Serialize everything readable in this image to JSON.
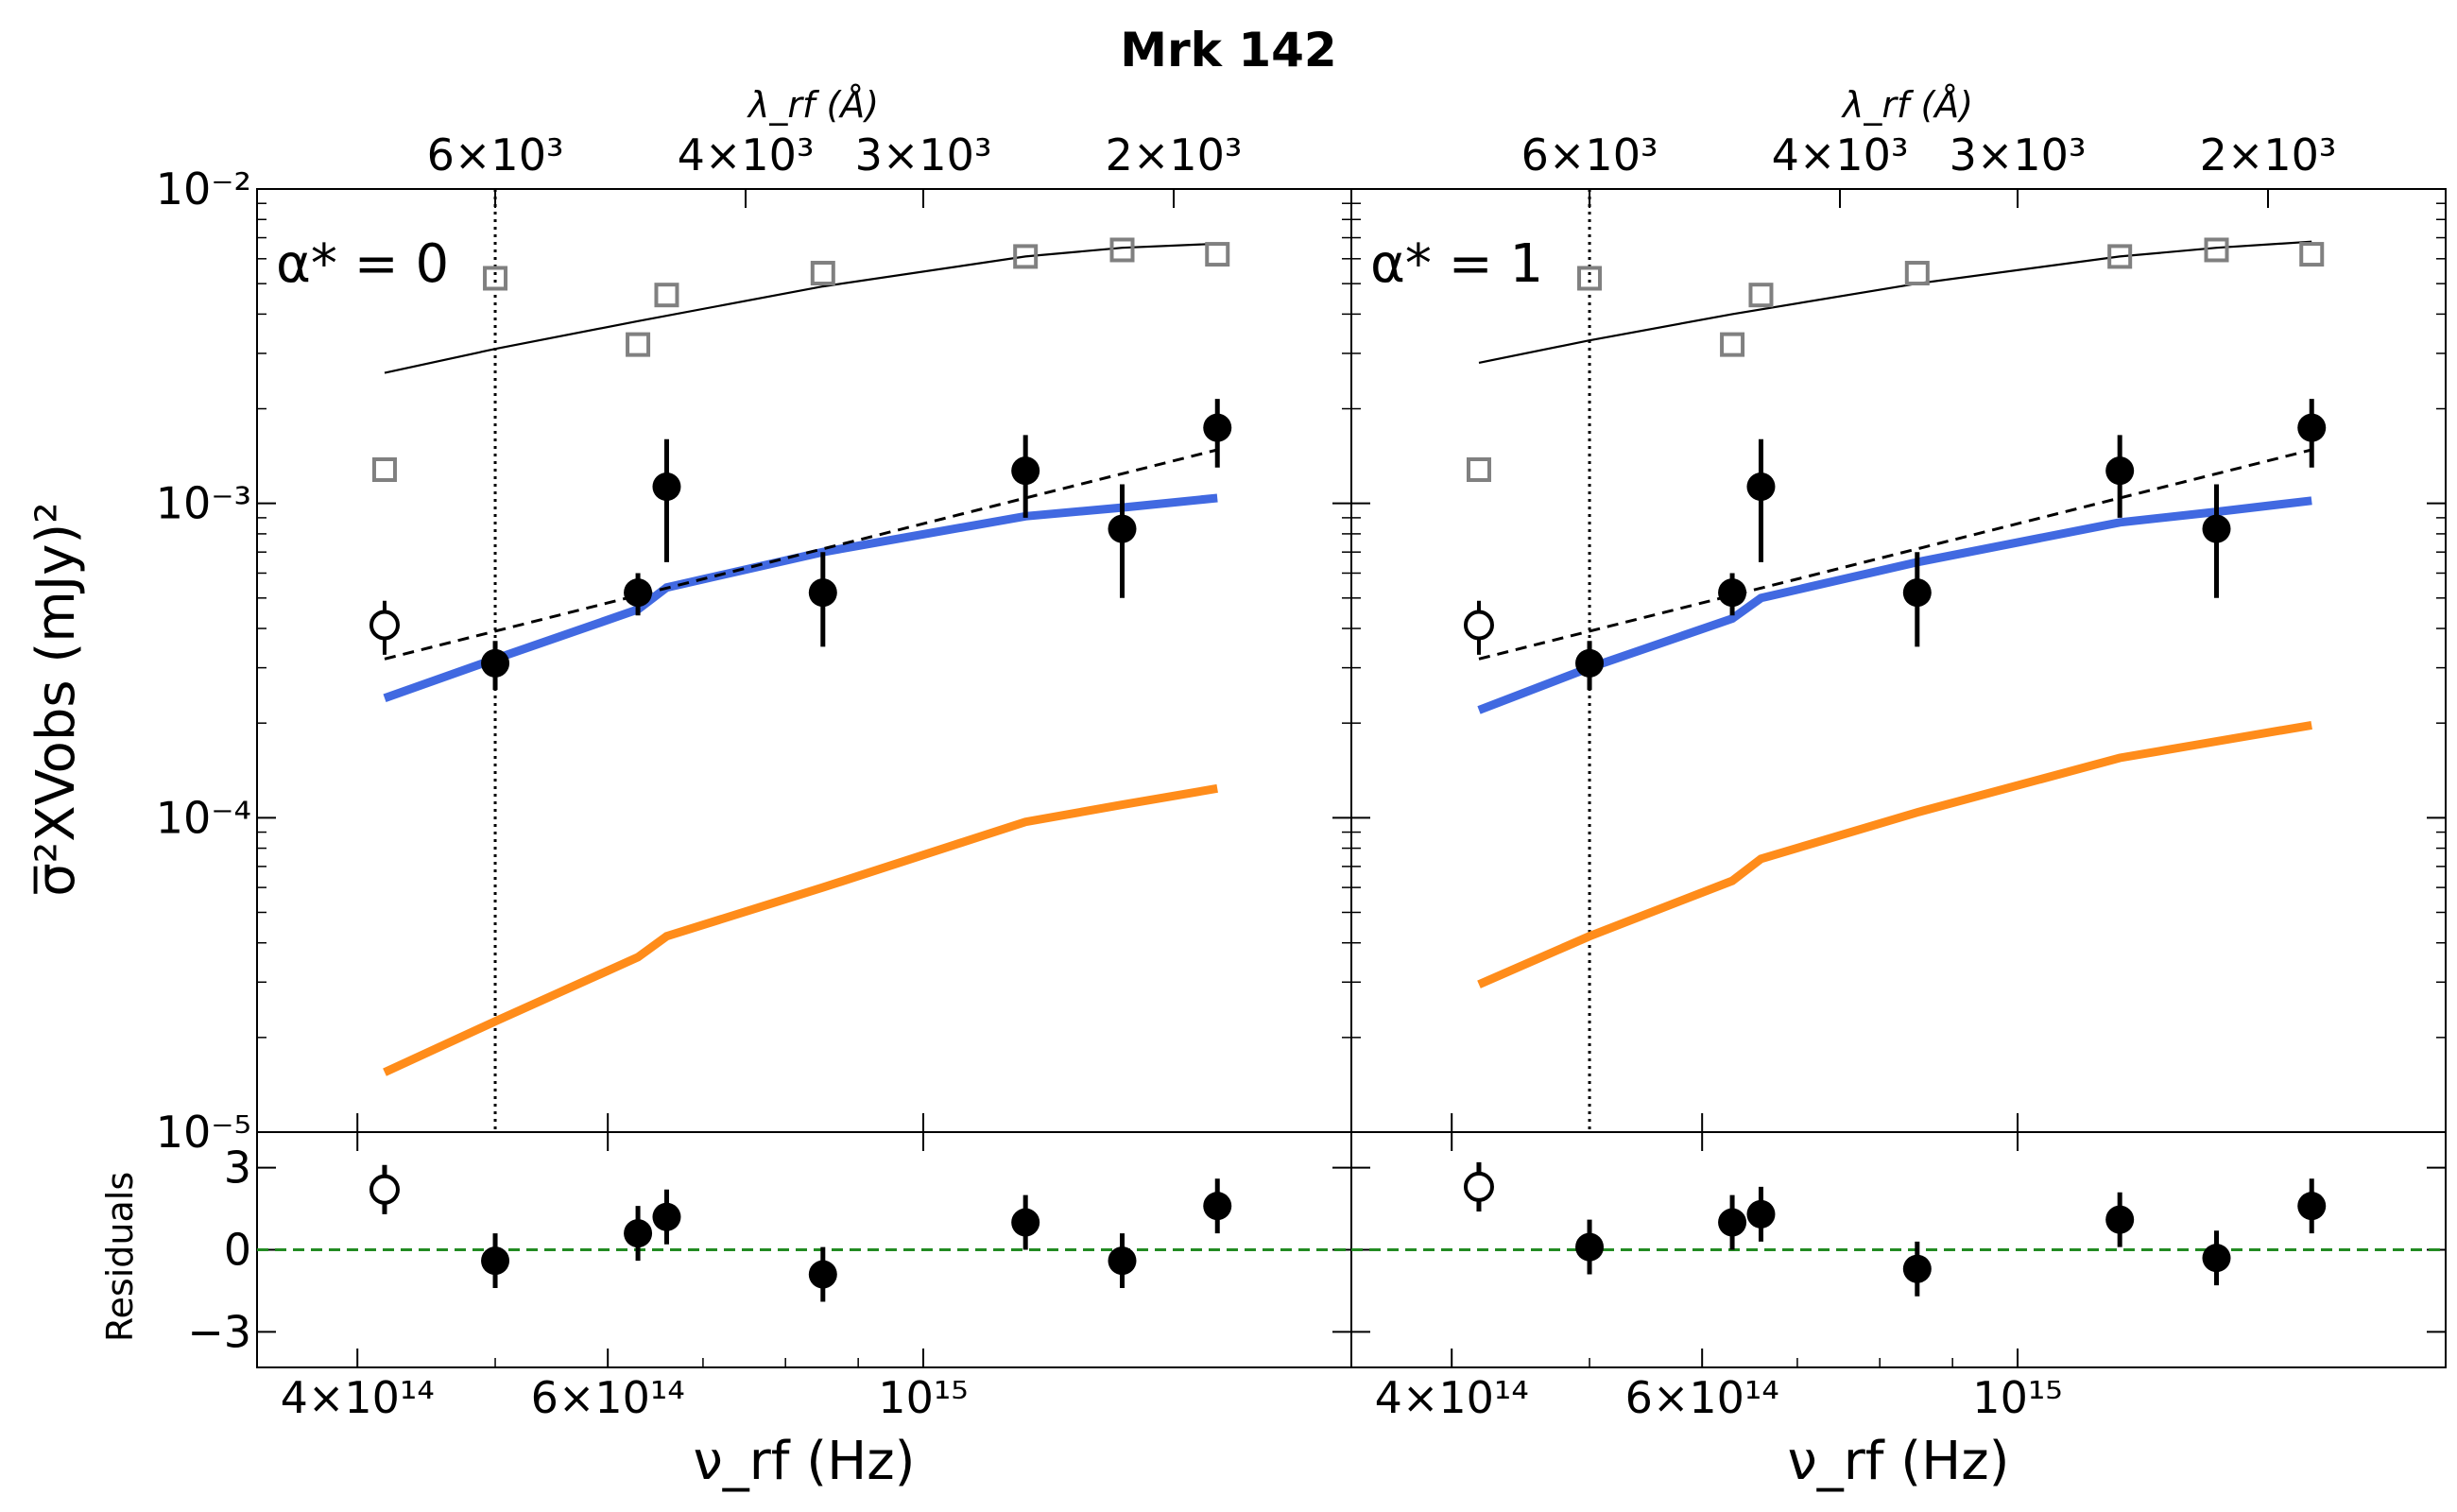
{
  "chart_data": {
    "type": "scatter",
    "title": "Mrk 142",
    "ylabel_main": "σ̅²XVobs (mJy)²",
    "ylabel_resid": "Residuals",
    "xlabel": "ν_rf (Hz)",
    "xlabel_top": "λ_rf (Å)",
    "x_scale": "log",
    "y_scale_main": "log",
    "xlim": [
      340000000000000,
      2000000000000000
    ],
    "ylim_main": [
      1e-05,
      0.01
    ],
    "ylim_resid": [
      -4.3,
      4.3
    ],
    "xticks": [
      {
        "value": 400000000000000,
        "label": "4×10¹⁴"
      },
      {
        "value": 600000000000000,
        "label": "6×10¹⁴"
      },
      {
        "value": 1000000000000000,
        "label": "10¹⁵"
      }
    ],
    "xticks_top": [
      {
        "nu": 500000000000000,
        "label": "6×10³"
      },
      {
        "nu": 750000000000000,
        "label": "4×10³"
      },
      {
        "nu": 1000000000000000,
        "label": "3×10³"
      },
      {
        "nu": 1500000000000000,
        "label": "2×10³"
      }
    ],
    "yticks_main": [
      {
        "value": 0.01,
        "label": "10⁻²"
      },
      {
        "value": 0.001,
        "label": "10⁻³"
      },
      {
        "value": 0.0001,
        "label": "10⁻⁴"
      },
      {
        "value": 1e-05,
        "label": "10⁻⁵"
      }
    ],
    "yticks_resid": [
      {
        "value": 3,
        "label": "3"
      },
      {
        "value": 0,
        "label": "0"
      },
      {
        "value": -3,
        "label": "−3"
      }
    ],
    "vline_nu": 500000000000000,
    "panels": [
      {
        "label": "α* = 0",
        "gray_squares": [
          {
            "x": 418000000000000,
            "y": 0.00128
          },
          {
            "x": 500000000000000,
            "y": 0.0052
          },
          {
            "x": 630000000000000,
            "y": 0.0032
          },
          {
            "x": 660000000000000,
            "y": 0.0046
          },
          {
            "x": 850000000000000,
            "y": 0.0054
          },
          {
            "x": 1180000000000000,
            "y": 0.0061
          },
          {
            "x": 1380000000000000,
            "y": 0.0064
          },
          {
            "x": 1610000000000000,
            "y": 0.0062
          }
        ],
        "thin_line": [
          {
            "x": 418000000000000,
            "y": 0.0026
          },
          {
            "x": 500000000000000,
            "y": 0.0031
          },
          {
            "x": 630000000000000,
            "y": 0.0038
          },
          {
            "x": 850000000000000,
            "y": 0.0049
          },
          {
            "x": 1180000000000000,
            "y": 0.0061
          },
          {
            "x": 1380000000000000,
            "y": 0.0065
          },
          {
            "x": 1610000000000000,
            "y": 0.0067
          }
        ],
        "points": [
          {
            "x": 500000000000000,
            "y": 0.00031,
            "err": [
              0.000255,
              0.000365
            ]
          },
          {
            "x": 630000000000000,
            "y": 0.00052,
            "err": [
              0.00044,
              0.0006
            ]
          },
          {
            "x": 660000000000000,
            "y": 0.00113,
            "err": [
              0.00065,
              0.0016
            ]
          },
          {
            "x": 850000000000000,
            "y": 0.00052,
            "err": [
              0.00035,
              0.0007
            ]
          },
          {
            "x": 1180000000000000,
            "y": 0.00127,
            "err": [
              0.0009,
              0.00165
            ]
          },
          {
            "x": 1380000000000000,
            "y": 0.00083,
            "err": [
              0.0005,
              0.00115
            ]
          },
          {
            "x": 1610000000000000,
            "y": 0.00174,
            "err": [
              0.0013,
              0.00215
            ]
          }
        ],
        "open_point": {
          "x": 418000000000000,
          "y": 0.00041,
          "err": [
            0.00033,
            0.00049
          ]
        },
        "dashed_line": [
          {
            "x": 418000000000000,
            "y": 0.00032
          },
          {
            "x": 1610000000000000,
            "y": 0.00148
          }
        ],
        "blue_line": [
          {
            "x": 418000000000000,
            "y": 0.00024
          },
          {
            "x": 500000000000000,
            "y": 0.00032
          },
          {
            "x": 630000000000000,
            "y": 0.00046
          },
          {
            "x": 660000000000000,
            "y": 0.00054
          },
          {
            "x": 850000000000000,
            "y": 0.0007
          },
          {
            "x": 1180000000000000,
            "y": 0.00091
          },
          {
            "x": 1380000000000000,
            "y": 0.00097
          },
          {
            "x": 1610000000000000,
            "y": 0.00104
          }
        ],
        "orange_line": [
          {
            "x": 418000000000000,
            "y": 1.55e-05
          },
          {
            "x": 500000000000000,
            "y": 2.25e-05
          },
          {
            "x": 630000000000000,
            "y": 3.6e-05
          },
          {
            "x": 660000000000000,
            "y": 4.2e-05
          },
          {
            "x": 850000000000000,
            "y": 6e-05
          },
          {
            "x": 1180000000000000,
            "y": 9.7e-05
          },
          {
            "x": 1380000000000000,
            "y": 0.00011
          },
          {
            "x": 1610000000000000,
            "y": 0.000124
          }
        ],
        "residuals": [
          {
            "x": 418000000000000,
            "y": 2.2,
            "open": true,
            "err": 0.9
          },
          {
            "x": 500000000000000,
            "y": -0.4,
            "err": 1.0
          },
          {
            "x": 630000000000000,
            "y": 0.6,
            "err": 1.0
          },
          {
            "x": 660000000000000,
            "y": 1.2,
            "err": 1.0
          },
          {
            "x": 850000000000000,
            "y": -0.9,
            "err": 1.0
          },
          {
            "x": 1180000000000000,
            "y": 1.0,
            "err": 1.0
          },
          {
            "x": 1380000000000000,
            "y": -0.4,
            "err": 1.0
          },
          {
            "x": 1610000000000000,
            "y": 1.6,
            "err": 1.0
          }
        ]
      },
      {
        "label": "α* = 1",
        "gray_squares": [
          {
            "x": 418000000000000,
            "y": 0.00128
          },
          {
            "x": 500000000000000,
            "y": 0.0052
          },
          {
            "x": 630000000000000,
            "y": 0.0032
          },
          {
            "x": 660000000000000,
            "y": 0.0046
          },
          {
            "x": 850000000000000,
            "y": 0.0054
          },
          {
            "x": 1180000000000000,
            "y": 0.0061
          },
          {
            "x": 1380000000000000,
            "y": 0.0064
          },
          {
            "x": 1610000000000000,
            "y": 0.0062
          }
        ],
        "thin_line": [
          {
            "x": 418000000000000,
            "y": 0.0028
          },
          {
            "x": 500000000000000,
            "y": 0.0033
          },
          {
            "x": 630000000000000,
            "y": 0.004
          },
          {
            "x": 850000000000000,
            "y": 0.005
          },
          {
            "x": 1180000000000000,
            "y": 0.0061
          },
          {
            "x": 1380000000000000,
            "y": 0.0065
          },
          {
            "x": 1610000000000000,
            "y": 0.0068
          }
        ],
        "points": [
          {
            "x": 500000000000000,
            "y": 0.00031,
            "err": [
              0.000255,
              0.000365
            ]
          },
          {
            "x": 630000000000000,
            "y": 0.00052,
            "err": [
              0.00044,
              0.0006
            ]
          },
          {
            "x": 660000000000000,
            "y": 0.00113,
            "err": [
              0.00065,
              0.0016
            ]
          },
          {
            "x": 850000000000000,
            "y": 0.00052,
            "err": [
              0.00035,
              0.0007
            ]
          },
          {
            "x": 1180000000000000,
            "y": 0.00127,
            "err": [
              0.0009,
              0.00165
            ]
          },
          {
            "x": 1380000000000000,
            "y": 0.00083,
            "err": [
              0.0005,
              0.00115
            ]
          },
          {
            "x": 1610000000000000,
            "y": 0.00174,
            "err": [
              0.0013,
              0.00215
            ]
          }
        ],
        "open_point": {
          "x": 418000000000000,
          "y": 0.00041,
          "err": [
            0.00033,
            0.00049
          ]
        },
        "dashed_line": [
          {
            "x": 418000000000000,
            "y": 0.00032
          },
          {
            "x": 1610000000000000,
            "y": 0.00148
          }
        ],
        "blue_line": [
          {
            "x": 418000000000000,
            "y": 0.00022
          },
          {
            "x": 500000000000000,
            "y": 0.0003
          },
          {
            "x": 630000000000000,
            "y": 0.00043
          },
          {
            "x": 660000000000000,
            "y": 0.0005
          },
          {
            "x": 850000000000000,
            "y": 0.00065
          },
          {
            "x": 1180000000000000,
            "y": 0.00087
          },
          {
            "x": 1380000000000000,
            "y": 0.00094
          },
          {
            "x": 1610000000000000,
            "y": 0.00102
          }
        ],
        "orange_line": [
          {
            "x": 418000000000000,
            "y": 2.95e-05
          },
          {
            "x": 500000000000000,
            "y": 4.2e-05
          },
          {
            "x": 630000000000000,
            "y": 6.3e-05
          },
          {
            "x": 660000000000000,
            "y": 7.4e-05
          },
          {
            "x": 850000000000000,
            "y": 0.000104
          },
          {
            "x": 1180000000000000,
            "y": 0.000155
          },
          {
            "x": 1380000000000000,
            "y": 0.000175
          },
          {
            "x": 1610000000000000,
            "y": 0.000197
          }
        ],
        "residuals": [
          {
            "x": 418000000000000,
            "y": 2.3,
            "open": true,
            "err": 0.9
          },
          {
            "x": 500000000000000,
            "y": 0.1,
            "err": 1.0
          },
          {
            "x": 630000000000000,
            "y": 1.0,
            "err": 1.0
          },
          {
            "x": 660000000000000,
            "y": 1.3,
            "err": 1.0
          },
          {
            "x": 850000000000000,
            "y": -0.7,
            "err": 1.0
          },
          {
            "x": 1180000000000000,
            "y": 1.1,
            "err": 1.0
          },
          {
            "x": 1380000000000000,
            "y": -0.3,
            "err": 1.0
          },
          {
            "x": 1610000000000000,
            "y": 1.6,
            "err": 1.0
          }
        ]
      }
    ],
    "colors": {
      "model_blue": "#4169e1",
      "model_orange": "#ff8c1a",
      "squares": "#808080",
      "zero_line": "#228b22"
    }
  }
}
